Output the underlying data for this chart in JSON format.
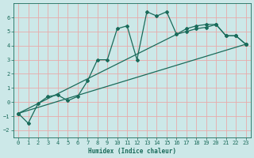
{
  "xlabel": "Humidex (Indice chaleur)",
  "bg_color": "#cce8e8",
  "grid_color": "#e8aaaa",
  "line_color": "#1a6b5a",
  "xlim": [
    -0.5,
    23.5
  ],
  "ylim": [
    -2.5,
    7.0
  ],
  "yticks": [
    -2,
    -1,
    0,
    1,
    2,
    3,
    4,
    5,
    6
  ],
  "xticks": [
    0,
    1,
    2,
    3,
    4,
    5,
    6,
    7,
    8,
    9,
    10,
    11,
    12,
    13,
    14,
    15,
    16,
    17,
    18,
    19,
    20,
    21,
    22,
    23
  ],
  "line1_x": [
    0,
    1,
    2,
    3,
    4,
    5,
    6,
    7,
    8,
    9,
    10,
    11,
    12,
    13,
    14,
    15,
    16,
    17,
    18,
    19,
    20,
    21,
    22,
    23
  ],
  "line1_y": [
    -0.8,
    -1.5,
    -0.1,
    0.4,
    0.5,
    0.1,
    0.4,
    1.5,
    3.0,
    3.0,
    5.2,
    5.4,
    3.0,
    6.4,
    6.1,
    6.4,
    4.8,
    5.2,
    5.4,
    5.5,
    5.5,
    4.7,
    4.7,
    4.1
  ],
  "line2_x": [
    0,
    16,
    17,
    18,
    19,
    20,
    21,
    22,
    23
  ],
  "line2_y": [
    -0.8,
    4.8,
    5.0,
    5.2,
    5.3,
    5.5,
    4.7,
    4.7,
    4.1
  ],
  "line3_x": [
    0,
    23
  ],
  "line3_y": [
    -0.8,
    4.1
  ],
  "marker_style": "D",
  "marker_size": 2.0,
  "line_width": 0.9
}
